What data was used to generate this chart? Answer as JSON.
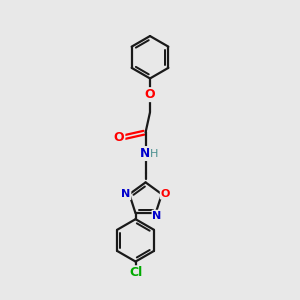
{
  "bg_color": "#e8e8e8",
  "bond_color": "#1a1a1a",
  "O_color": "#ff0000",
  "N_color": "#0000cc",
  "Cl_color": "#00aa00",
  "H_color": "#4a9090",
  "line_width": 1.6,
  "font_size": 9,
  "figsize": [
    3.0,
    3.0
  ],
  "dpi": 100,
  "xlim": [
    0,
    10
  ],
  "ylim": [
    0,
    10
  ]
}
